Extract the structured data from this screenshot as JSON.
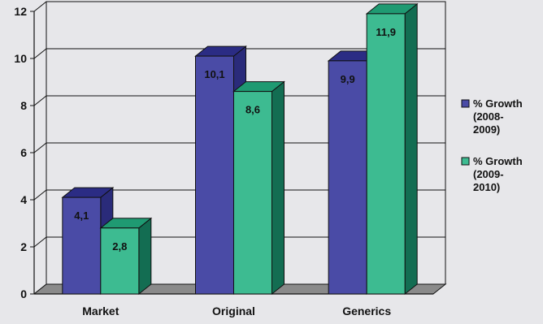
{
  "chart_data": {
    "type": "bar",
    "categories": [
      "Market",
      "Original",
      "Generics"
    ],
    "series": [
      {
        "name": "% Growth (2008-2009)",
        "name_lines": [
          "% Growth",
          "(2008-",
          "2009)"
        ],
        "values": [
          4.1,
          10.1,
          9.9
        ],
        "labels": [
          "4,1",
          "10,1",
          "9,9"
        ],
        "front_color": "#4a4ba6",
        "side_color": "#2a2b7a",
        "top_color": "#2b2c84"
      },
      {
        "name": "% Growth (2009-2010)",
        "name_lines": [
          "% Growth",
          "(2009-",
          "2010)"
        ],
        "values": [
          2.8,
          8.6,
          11.9
        ],
        "labels": [
          "2,8",
          "8,6",
          "11,9"
        ],
        "front_color": "#3dbb91",
        "side_color": "#136d52",
        "top_color": "#1f9a72"
      }
    ],
    "y_ticks": [
      "0",
      "2",
      "4",
      "6",
      "8",
      "10",
      "12"
    ],
    "ylim": [
      0,
      12
    ],
    "grid": true,
    "legend": "right",
    "style": "3d-clustered-column",
    "floor_color": "#8a8a8a"
  }
}
